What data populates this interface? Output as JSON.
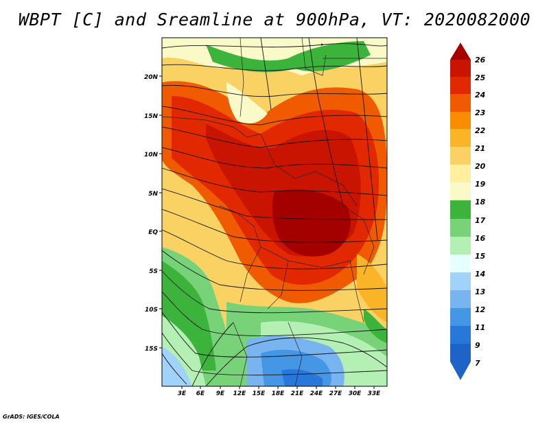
{
  "title": "WBPT [C] and Sreamline at 900hPa, VT: 2020082000",
  "credit": "GrADS: IGES/COLA",
  "lat_labels": [
    "20N",
    "15N",
    "10N",
    "5N",
    "EQ",
    "5S",
    "10S",
    "15S"
  ],
  "lon_labels": [
    "3E",
    "6E",
    "9E",
    "12E",
    "15E",
    "18E",
    "21E",
    "24E",
    "27E",
    "30E",
    "33E"
  ],
  "colorbar": {
    "labels": [
      "26",
      "25",
      "24",
      "23",
      "22",
      "21",
      "20",
      "19",
      "18",
      "17",
      "16",
      "15",
      "14",
      "13",
      "12",
      "11",
      "9",
      "7"
    ],
    "colors": [
      "#a50000",
      "#c81400",
      "#e12800",
      "#f05a00",
      "#fa8c00",
      "#fab428",
      "#fad264",
      "#fff0a0",
      "#fafac8",
      "#3cb43c",
      "#78d278",
      "#b4f0b4",
      "#e6ffff",
      "#a0d2fa",
      "#78b4f0",
      "#4696e6",
      "#2878dc",
      "#1e64c8"
    ]
  }
}
